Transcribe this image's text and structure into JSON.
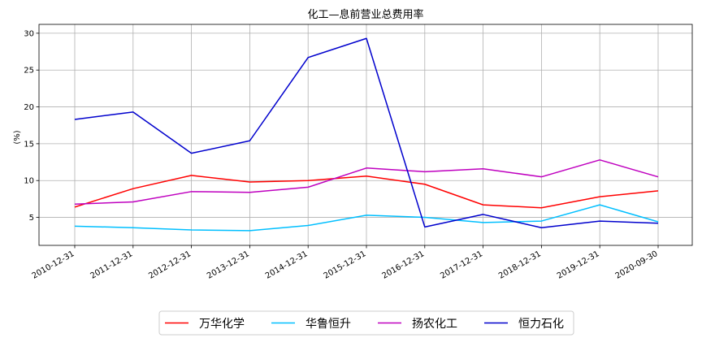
{
  "chart_data": {
    "type": "line",
    "title": "化工—息前营业总费用率",
    "ylabel": "(%)",
    "xlabel": "",
    "categories": [
      "2010-12-31",
      "2011-12-31",
      "2012-12-31",
      "2013-12-31",
      "2014-12-31",
      "2015-12-31",
      "2016-12-31",
      "2017-12-31",
      "2018-12-31",
      "2019-12-31",
      "2020-09-30"
    ],
    "ylim": [
      1.2,
      31.2
    ],
    "yticks": [
      5,
      10,
      15,
      20,
      25,
      30
    ],
    "grid": true,
    "legend_position": "bottom-center",
    "series": [
      {
        "name": "万华化学",
        "color": "#ff0000",
        "values": [
          6.4,
          8.9,
          10.7,
          9.8,
          10.0,
          10.6,
          9.5,
          6.7,
          6.3,
          7.8,
          8.6
        ]
      },
      {
        "name": "华鲁恒升",
        "color": "#00bfff",
        "values": [
          3.8,
          3.6,
          3.3,
          3.2,
          3.9,
          5.3,
          5.0,
          4.3,
          4.5,
          6.7,
          4.4
        ]
      },
      {
        "name": "扬农化工",
        "color": "#bf00bf",
        "values": [
          6.8,
          7.1,
          8.5,
          8.4,
          9.1,
          11.7,
          11.2,
          11.6,
          10.5,
          12.8,
          10.5
        ]
      },
      {
        "name": "恒力石化",
        "color": "#0000cd",
        "values": [
          18.3,
          19.3,
          13.7,
          15.4,
          26.7,
          29.3,
          3.7,
          5.4,
          3.6,
          4.5,
          4.2
        ]
      }
    ]
  }
}
